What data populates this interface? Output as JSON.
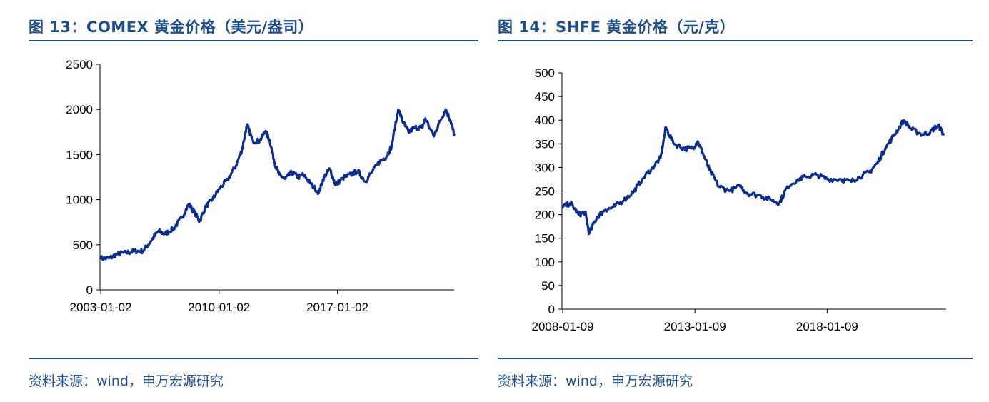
{
  "charts": [
    {
      "title": "图 13：COMEX 黄金价格（美元/盎司）",
      "source": "资料来源：wind，申万宏源研究",
      "series_color": "#0a2d8f"
    },
    {
      "title": "图 14：SHFE 黄金价格（元/克）",
      "source": "资料来源：wind，申万宏源研究",
      "series_color": "#0a2d8f"
    }
  ],
  "chart_data": [
    {
      "type": "line",
      "title": "",
      "xlabel": "",
      "ylabel": "",
      "ylim": [
        0,
        2500
      ],
      "yticks": [
        0,
        500,
        1000,
        1500,
        2000,
        2500
      ],
      "xlim": [
        2003.0,
        2023.9
      ],
      "xticks": [
        {
          "x": 2003.0,
          "label": "2003-01-02"
        },
        {
          "x": 2010.0,
          "label": "2010-01-02"
        },
        {
          "x": 2017.0,
          "label": "2017-01-02"
        }
      ],
      "grid": false,
      "series": [
        {
          "x": [
            2003.0,
            2003.5,
            2004.0,
            2004.5,
            2005.0,
            2005.5,
            2006.0,
            2006.4,
            2006.8,
            2007.3,
            2007.8,
            2008.2,
            2008.5,
            2008.85,
            2009.2,
            2009.6,
            2010.0,
            2010.5,
            2011.0,
            2011.35,
            2011.65,
            2012.0,
            2012.4,
            2012.75,
            2013.0,
            2013.3,
            2013.55,
            2013.9,
            2014.3,
            2014.7,
            2015.0,
            2015.4,
            2015.9,
            2016.2,
            2016.55,
            2016.9,
            2017.3,
            2017.8,
            2018.2,
            2018.65,
            2019.0,
            2019.5,
            2019.9,
            2020.2,
            2020.6,
            2020.9,
            2021.2,
            2021.6,
            2022.0,
            2022.2,
            2022.7,
            2023.0,
            2023.4,
            2023.7,
            2023.9
          ],
          "values": [
            350,
            350,
            400,
            410,
            430,
            430,
            550,
            650,
            620,
            680,
            800,
            950,
            870,
            760,
            920,
            1000,
            1120,
            1220,
            1380,
            1550,
            1830,
            1650,
            1650,
            1760,
            1650,
            1400,
            1280,
            1230,
            1300,
            1250,
            1280,
            1180,
            1080,
            1250,
            1340,
            1160,
            1240,
            1280,
            1320,
            1200,
            1300,
            1420,
            1480,
            1590,
            2000,
            1850,
            1750,
            1800,
            1800,
            1900,
            1700,
            1850,
            2000,
            1870,
            1720
          ]
        }
      ]
    },
    {
      "type": "line",
      "title": "",
      "xlabel": "",
      "ylabel": "",
      "ylim": [
        0,
        500
      ],
      "yticks": [
        0,
        50,
        100,
        150,
        200,
        250,
        300,
        350,
        400,
        450,
        500
      ],
      "xlim": [
        2008.0,
        2022.5
      ],
      "xticks": [
        {
          "x": 2008.0,
          "label": "2008-01-09"
        },
        {
          "x": 2013.0,
          "label": "2013-01-09"
        },
        {
          "x": 2018.0,
          "label": "2018-01-09"
        }
      ],
      "grid": false,
      "series": [
        {
          "x": [
            2008.0,
            2008.3,
            2008.6,
            2008.85,
            2009.0,
            2009.3,
            2009.6,
            2009.9,
            2010.3,
            2010.7,
            2011.0,
            2011.4,
            2011.7,
            2011.9,
            2012.2,
            2012.6,
            2012.9,
            2013.1,
            2013.3,
            2013.55,
            2013.9,
            2014.3,
            2014.7,
            2015.0,
            2015.5,
            2015.9,
            2016.2,
            2016.5,
            2016.9,
            2017.2,
            2017.6,
            2018.0,
            2018.5,
            2018.9,
            2019.2,
            2019.6,
            2019.9,
            2020.2,
            2020.55,
            2020.9,
            2021.2,
            2021.6,
            2021.9,
            2022.2,
            2022.4
          ],
          "values": [
            215,
            225,
            200,
            205,
            160,
            195,
            210,
            215,
            230,
            250,
            275,
            300,
            320,
            385,
            350,
            340,
            340,
            355,
            330,
            295,
            260,
            250,
            260,
            245,
            240,
            230,
            225,
            260,
            275,
            280,
            285,
            275,
            275,
            270,
            280,
            290,
            310,
            340,
            370,
            400,
            380,
            370,
            375,
            390,
            370
          ]
        }
      ]
    }
  ]
}
